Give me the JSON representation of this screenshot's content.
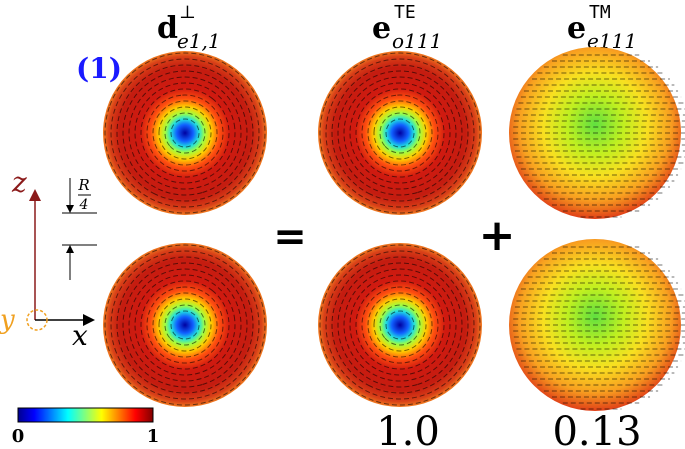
{
  "figure": {
    "panel_label": "(1)",
    "columns": [
      {
        "base": "d",
        "sup": "⊥",
        "sub": "e1,1"
      },
      {
        "base": "e",
        "sup": "TE",
        "sub": "o111"
      },
      {
        "base": "e",
        "sup": "TM",
        "sub": "e111"
      }
    ],
    "equals": "=",
    "plus": "+",
    "axes": {
      "z": "z",
      "x": "x",
      "y": "y",
      "scale_num": "R",
      "scale_den": "4"
    },
    "colorbar": {
      "min_label": "0",
      "max_label": "1"
    },
    "coefficients": [
      "1.0",
      "0.13"
    ]
  }
}
